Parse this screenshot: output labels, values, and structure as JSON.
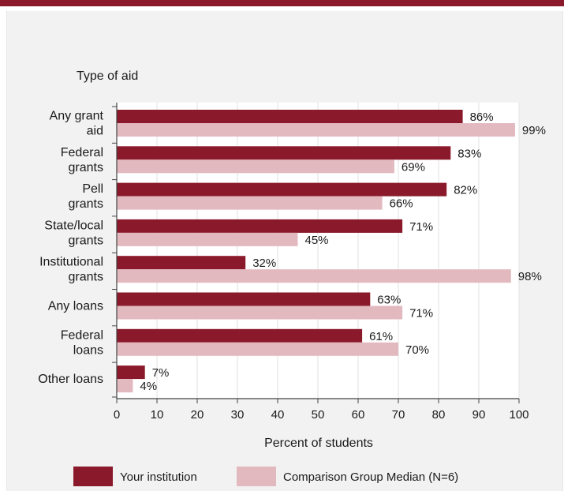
{
  "colors": {
    "brand_rule": "#8a1a2b",
    "panel_bg": "#f2f2f2",
    "series_institution": "#8a1a2b",
    "series_comparison": "#e3b9c0"
  },
  "chart_data": {
    "type": "bar",
    "orientation": "horizontal",
    "title": "Type of aid",
    "xlabel": "Percent of students",
    "ylabel": "",
    "xlim": [
      0,
      100
    ],
    "ticks": [
      "0",
      "10",
      "20",
      "30",
      "40",
      "50",
      "60",
      "70",
      "80",
      "90",
      "100"
    ],
    "grid": true,
    "legend_position": "bottom",
    "categories": [
      [
        "Any grant",
        "aid"
      ],
      [
        "Federal",
        "grants"
      ],
      [
        "Pell",
        "grants"
      ],
      [
        "State/local",
        "grants"
      ],
      [
        "Institutional",
        "grants"
      ],
      [
        "Any loans"
      ],
      [
        "Federal",
        "loans"
      ],
      [
        "Other loans"
      ]
    ],
    "series": [
      {
        "name": "Your institution",
        "color": "#8a1a2b",
        "values": [
          86,
          83,
          82,
          71,
          32,
          63,
          61,
          7
        ],
        "labels": [
          "86%",
          "83%",
          "82%",
          "71%",
          "32%",
          "63%",
          "61%",
          "7%"
        ]
      },
      {
        "name": "Comparison Group Median (N=6)",
        "color": "#e3b9c0",
        "values": [
          99,
          69,
          66,
          45,
          98,
          71,
          70,
          4
        ],
        "labels": [
          "99%",
          "69%",
          "66%",
          "45%",
          "98%",
          "71%",
          "70%",
          "4%"
        ]
      }
    ]
  }
}
